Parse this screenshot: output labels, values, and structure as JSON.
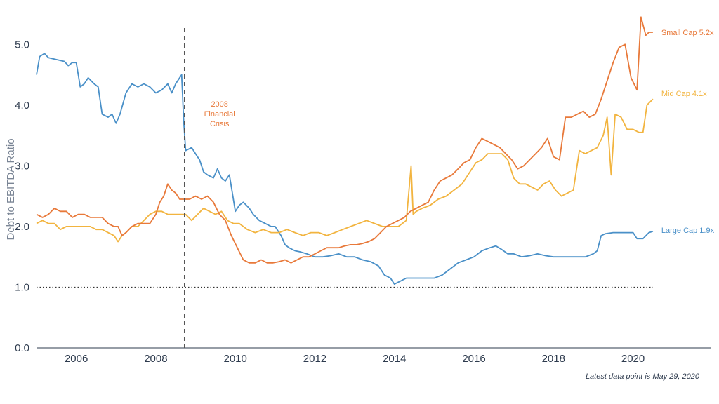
{
  "chart_data": {
    "type": "line",
    "title": "",
    "xlabel": "",
    "ylabel": "Debt to EBITDA Ratio",
    "xlim": [
      2005.0,
      2021.95
    ],
    "ylim": [
      0,
      5.5
    ],
    "x_ticks": [
      2006,
      2008,
      2010,
      2012,
      2014,
      2016,
      2018,
      2020
    ],
    "x_tick_labels": [
      "2006",
      "2008",
      "2010",
      "2012",
      "2014",
      "2016",
      "2018",
      "2020"
    ],
    "y_ticks": [
      0,
      1,
      2,
      3,
      4,
      5
    ],
    "y_tick_labels": [
      "0.0",
      "1.0",
      "2.0",
      "3.0",
      "4.0",
      "5.0"
    ],
    "grid": false,
    "reference_line": {
      "y": 1.0,
      "style": "dotted",
      "x_end": 2020.5
    },
    "event_line": {
      "x": 2008.72,
      "style": "dashed",
      "label": [
        "2008",
        "Financial",
        "Crisis"
      ]
    },
    "footnote": "Latest data point is May 29, 2020",
    "colors": {
      "large": "#4a90c8",
      "mid": "#f2b43f",
      "small": "#e8793a"
    },
    "series": [
      {
        "name": "Large Cap",
        "end_label": "Large Cap 1.9x",
        "color": "#4a90c8",
        "x": [
          2005.0,
          2005.08,
          2005.2,
          2005.3,
          2005.5,
          2005.7,
          2005.8,
          2005.9,
          2006.0,
          2006.1,
          2006.2,
          2006.3,
          2006.45,
          2006.55,
          2006.65,
          2006.8,
          2006.9,
          2007.0,
          2007.1,
          2007.25,
          2007.4,
          2007.55,
          2007.7,
          2007.85,
          2008.0,
          2008.15,
          2008.3,
          2008.4,
          2008.5,
          2008.65,
          2008.7,
          2008.75,
          2008.9,
          2009.0,
          2009.1,
          2009.2,
          2009.3,
          2009.45,
          2009.55,
          2009.65,
          2009.75,
          2009.85,
          2010.0,
          2010.1,
          2010.2,
          2010.35,
          2010.45,
          2010.6,
          2010.75,
          2010.9,
          2011.0,
          2011.15,
          2011.25,
          2011.35,
          2011.5,
          2011.65,
          2011.8,
          2012.0,
          2012.2,
          2012.4,
          2012.6,
          2012.8,
          2013.0,
          2013.2,
          2013.4,
          2013.6,
          2013.75,
          2013.9,
          2014.0,
          2014.15,
          2014.3,
          2014.5,
          2014.7,
          2014.85,
          2015.0,
          2015.2,
          2015.4,
          2015.6,
          2015.8,
          2016.0,
          2016.2,
          2016.4,
          2016.55,
          2016.7,
          2016.85,
          2017.0,
          2017.2,
          2017.4,
          2017.6,
          2017.8,
          2018.0,
          2018.2,
          2018.4,
          2018.6,
          2018.8,
          2019.0,
          2019.1,
          2019.2,
          2019.3,
          2019.5,
          2019.7,
          2019.9,
          2020.0,
          2020.1,
          2020.25,
          2020.4,
          2020.5
        ],
        "values": [
          4.5,
          4.8,
          4.85,
          4.78,
          4.75,
          4.72,
          4.65,
          4.7,
          4.7,
          4.3,
          4.35,
          4.45,
          4.35,
          4.3,
          3.85,
          3.8,
          3.85,
          3.7,
          3.85,
          4.2,
          4.35,
          4.3,
          4.35,
          4.3,
          4.2,
          4.25,
          4.35,
          4.2,
          4.35,
          4.5,
          3.75,
          3.25,
          3.3,
          3.2,
          3.1,
          2.9,
          2.85,
          2.8,
          2.95,
          2.8,
          2.75,
          2.85,
          2.25,
          2.35,
          2.4,
          2.3,
          2.2,
          2.1,
          2.05,
          2.0,
          2.0,
          1.85,
          1.7,
          1.65,
          1.6,
          1.58,
          1.55,
          1.5,
          1.5,
          1.52,
          1.55,
          1.5,
          1.5,
          1.45,
          1.42,
          1.35,
          1.2,
          1.15,
          1.05,
          1.1,
          1.15,
          1.15,
          1.15,
          1.15,
          1.15,
          1.2,
          1.3,
          1.4,
          1.45,
          1.5,
          1.6,
          1.65,
          1.68,
          1.62,
          1.55,
          1.55,
          1.5,
          1.52,
          1.55,
          1.52,
          1.5,
          1.5,
          1.5,
          1.5,
          1.5,
          1.55,
          1.6,
          1.85,
          1.88,
          1.9,
          1.9,
          1.9,
          1.9,
          1.8,
          1.8,
          1.9,
          1.92
        ]
      },
      {
        "name": "Mid Cap",
        "end_label": "Mid Cap 4.1x",
        "color": "#f2b43f",
        "x": [
          2005.0,
          2005.15,
          2005.3,
          2005.45,
          2005.6,
          2005.75,
          2005.9,
          2006.05,
          2006.2,
          2006.35,
          2006.5,
          2006.65,
          2006.8,
          2006.95,
          2007.05,
          2007.15,
          2007.25,
          2007.4,
          2007.55,
          2007.7,
          2007.85,
          2008.0,
          2008.15,
          2008.3,
          2008.45,
          2008.6,
          2008.75,
          2008.9,
          2009.05,
          2009.2,
          2009.35,
          2009.5,
          2009.65,
          2009.8,
          2009.95,
          2010.1,
          2010.3,
          2010.5,
          2010.7,
          2010.9,
          2011.1,
          2011.3,
          2011.5,
          2011.7,
          2011.9,
          2012.1,
          2012.3,
          2012.5,
          2012.7,
          2012.9,
          2013.1,
          2013.3,
          2013.5,
          2013.7,
          2013.9,
          2014.1,
          2014.3,
          2014.42,
          2014.47,
          2014.55,
          2014.7,
          2014.9,
          2015.1,
          2015.3,
          2015.5,
          2015.7,
          2015.9,
          2016.05,
          2016.2,
          2016.35,
          2016.5,
          2016.7,
          2016.85,
          2017.0,
          2017.15,
          2017.3,
          2017.45,
          2017.6,
          2017.75,
          2017.9,
          2018.05,
          2018.2,
          2018.35,
          2018.5,
          2018.65,
          2018.8,
          2018.95,
          2019.1,
          2019.25,
          2019.35,
          2019.45,
          2019.55,
          2019.7,
          2019.85,
          2020.0,
          2020.15,
          2020.25,
          2020.35,
          2020.5
        ],
        "values": [
          2.05,
          2.1,
          2.05,
          2.05,
          1.95,
          2.0,
          2.0,
          2.0,
          2.0,
          2.0,
          1.95,
          1.95,
          1.9,
          1.85,
          1.75,
          1.85,
          1.9,
          2.0,
          2.0,
          2.1,
          2.2,
          2.25,
          2.25,
          2.2,
          2.2,
          2.2,
          2.2,
          2.1,
          2.2,
          2.3,
          2.25,
          2.2,
          2.25,
          2.1,
          2.05,
          2.05,
          1.95,
          1.9,
          1.95,
          1.9,
          1.9,
          1.95,
          1.9,
          1.85,
          1.9,
          1.9,
          1.85,
          1.9,
          1.95,
          2.0,
          2.05,
          2.1,
          2.05,
          2.0,
          2.0,
          2.0,
          2.1,
          3.0,
          2.2,
          2.25,
          2.3,
          2.35,
          2.45,
          2.5,
          2.6,
          2.7,
          2.9,
          3.05,
          3.1,
          3.2,
          3.2,
          3.2,
          3.1,
          2.8,
          2.7,
          2.7,
          2.65,
          2.6,
          2.7,
          2.75,
          2.6,
          2.5,
          2.55,
          2.6,
          3.25,
          3.2,
          3.25,
          3.3,
          3.5,
          3.8,
          2.85,
          3.85,
          3.8,
          3.6,
          3.6,
          3.55,
          3.55,
          4.0,
          4.1
        ]
      },
      {
        "name": "Small Cap",
        "end_label": "Small Cap 5.2x",
        "color": "#e8793a",
        "x": [
          2005.0,
          2005.15,
          2005.3,
          2005.45,
          2005.6,
          2005.75,
          2005.9,
          2006.05,
          2006.2,
          2006.35,
          2006.5,
          2006.65,
          2006.8,
          2006.95,
          2007.05,
          2007.15,
          2007.25,
          2007.4,
          2007.55,
          2007.7,
          2007.85,
          2008.0,
          2008.1,
          2008.2,
          2008.3,
          2008.4,
          2008.5,
          2008.6,
          2008.72,
          2008.85,
          2009.0,
          2009.15,
          2009.3,
          2009.45,
          2009.6,
          2009.75,
          2009.9,
          2010.05,
          2010.2,
          2010.35,
          2010.5,
          2010.65,
          2010.8,
          2010.95,
          2011.1,
          2011.25,
          2011.4,
          2011.55,
          2011.7,
          2011.85,
          2012.0,
          2012.15,
          2012.3,
          2012.45,
          2012.6,
          2012.75,
          2012.9,
          2013.05,
          2013.2,
          2013.35,
          2013.5,
          2013.65,
          2013.8,
          2013.95,
          2014.1,
          2014.25,
          2014.4,
          2014.55,
          2014.7,
          2014.85,
          2015.0,
          2015.15,
          2015.3,
          2015.45,
          2015.6,
          2015.75,
          2015.9,
          2016.05,
          2016.2,
          2016.35,
          2016.5,
          2016.65,
          2016.8,
          2016.95,
          2017.1,
          2017.25,
          2017.4,
          2017.55,
          2017.7,
          2017.85,
          2018.0,
          2018.15,
          2018.3,
          2018.45,
          2018.6,
          2018.75,
          2018.9,
          2019.05,
          2019.2,
          2019.35,
          2019.5,
          2019.65,
          2019.8,
          2019.95,
          2020.1,
          2020.2,
          2020.32,
          2020.4,
          2020.5
        ],
        "values": [
          2.2,
          2.15,
          2.2,
          2.3,
          2.25,
          2.25,
          2.15,
          2.2,
          2.2,
          2.15,
          2.15,
          2.15,
          2.05,
          2.0,
          2.0,
          1.85,
          1.9,
          2.0,
          2.05,
          2.05,
          2.05,
          2.2,
          2.4,
          2.5,
          2.7,
          2.6,
          2.55,
          2.45,
          2.45,
          2.45,
          2.5,
          2.45,
          2.5,
          2.4,
          2.2,
          2.1,
          1.85,
          1.65,
          1.45,
          1.4,
          1.4,
          1.45,
          1.4,
          1.4,
          1.42,
          1.45,
          1.4,
          1.45,
          1.5,
          1.5,
          1.55,
          1.6,
          1.65,
          1.65,
          1.65,
          1.68,
          1.7,
          1.7,
          1.72,
          1.75,
          1.8,
          1.9,
          2.0,
          2.05,
          2.1,
          2.15,
          2.25,
          2.3,
          2.35,
          2.4,
          2.6,
          2.75,
          2.8,
          2.85,
          2.95,
          3.05,
          3.1,
          3.3,
          3.45,
          3.4,
          3.35,
          3.3,
          3.2,
          3.1,
          2.95,
          3.0,
          3.1,
          3.2,
          3.3,
          3.45,
          3.15,
          3.1,
          3.8,
          3.8,
          3.85,
          3.9,
          3.8,
          3.85,
          4.1,
          4.4,
          4.7,
          4.95,
          5.0,
          4.45,
          4.25,
          5.45,
          5.15,
          5.2,
          5.2
        ]
      }
    ]
  }
}
